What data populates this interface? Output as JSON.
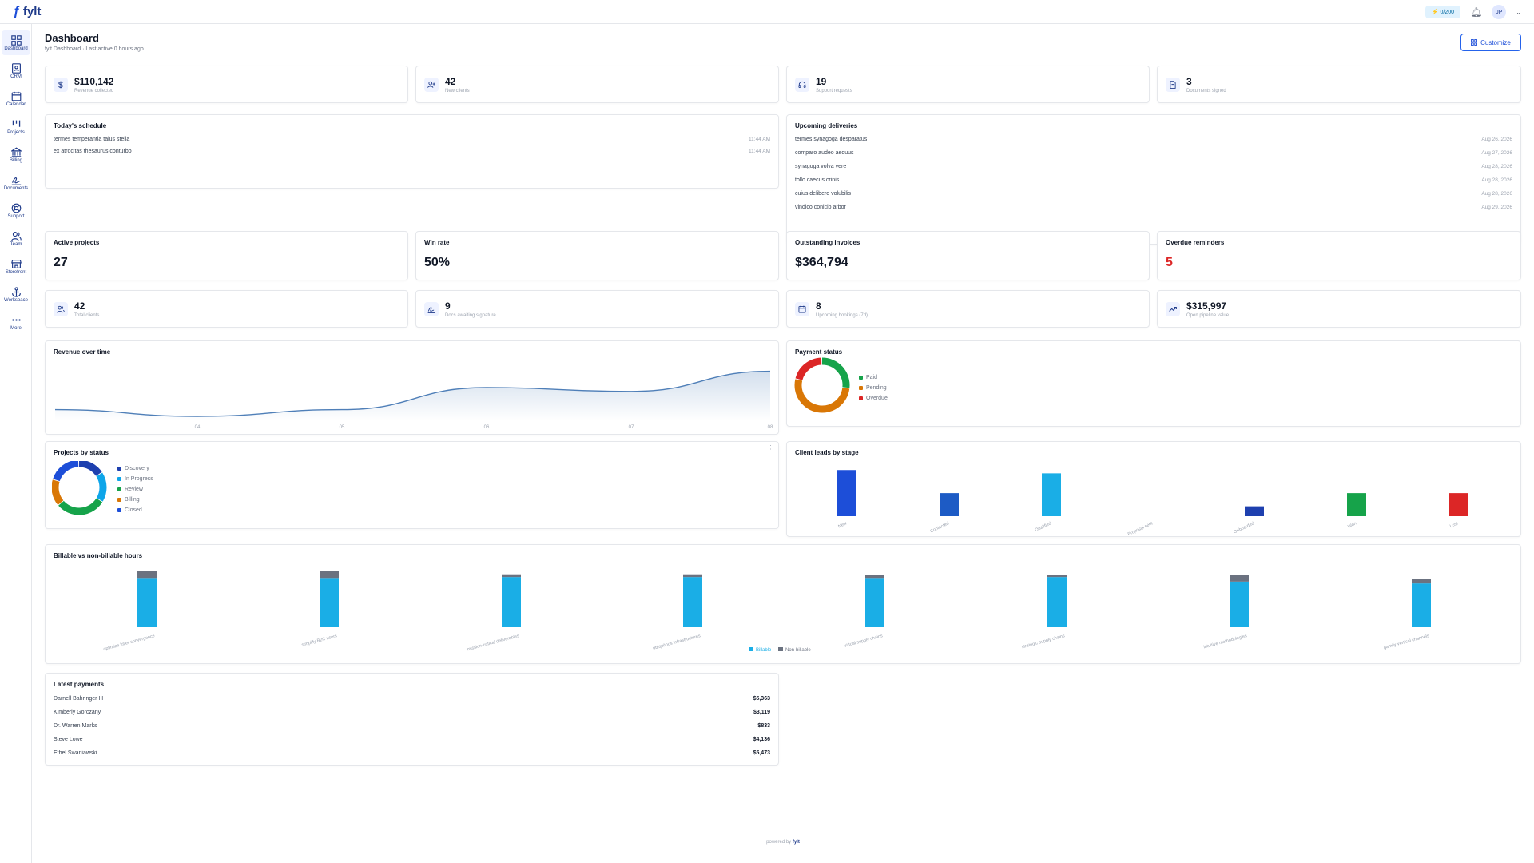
{
  "app": {
    "brand": "fylt",
    "credits": "0/200",
    "avatar": "JP"
  },
  "nav": [
    {
      "label": "Dashboard",
      "icon": "grid-icon",
      "active": true
    },
    {
      "label": "CRM",
      "icon": "contacts-icon"
    },
    {
      "label": "Calendar",
      "icon": "calendar-icon"
    },
    {
      "label": "Projects",
      "icon": "projects-icon"
    },
    {
      "label": "Billing",
      "icon": "bank-icon"
    },
    {
      "label": "Documents",
      "icon": "signature-icon"
    },
    {
      "label": "Support",
      "icon": "lifebuoy-icon"
    },
    {
      "label": "Team",
      "icon": "team-icon"
    },
    {
      "label": "Storefront",
      "icon": "store-icon"
    },
    {
      "label": "Workspace",
      "icon": "anchor-icon"
    },
    {
      "label": "More",
      "icon": "more-icon"
    }
  ],
  "page": {
    "title": "Dashboard",
    "subtitle": "fylt Dashboard · Last active 0 hours ago",
    "customize": "Customize"
  },
  "top_stats": [
    {
      "value": "$110,142",
      "label": "Revenue collected",
      "icon": "dollar-icon"
    },
    {
      "value": "42",
      "label": "New clients",
      "icon": "user-plus-icon"
    },
    {
      "value": "19",
      "label": "Support requests",
      "icon": "headset-icon"
    },
    {
      "value": "3",
      "label": "Documents signed",
      "icon": "document-icon"
    }
  ],
  "schedule": {
    "title": "Today's schedule",
    "items": [
      {
        "name": "termes temperantia talus stella",
        "time": "11:44 AM"
      },
      {
        "name": "ex atrocitas thesaurus conturbo",
        "time": "11:44 AM"
      }
    ]
  },
  "deliveries": {
    "title": "Upcoming deliveries",
    "items": [
      {
        "name": "termes synagoga desparatus",
        "date": "Aug 26, 2026"
      },
      {
        "name": "comparo audeo aequus",
        "date": "Aug 27, 2026"
      },
      {
        "name": "synagoga volva vere",
        "date": "Aug 28, 2026"
      },
      {
        "name": "tollo caecus crinis",
        "date": "Aug 28, 2026"
      },
      {
        "name": "cuius delibero volubilis",
        "date": "Aug 28, 2026"
      },
      {
        "name": "vindico conicio arbor",
        "date": "Aug 29, 2026"
      }
    ]
  },
  "kpis": [
    {
      "title": "Active projects",
      "value": "27"
    },
    {
      "title": "Win rate",
      "value": "50%"
    },
    {
      "title": "Outstanding invoices",
      "value": "$364,794"
    },
    {
      "title": "Overdue reminders",
      "value": "5",
      "color": "#dc2626"
    }
  ],
  "mid_stats": [
    {
      "value": "42",
      "label": "Total clients",
      "icon": "users-icon"
    },
    {
      "value": "9",
      "label": "Docs awaiting signature",
      "icon": "signature-icon"
    },
    {
      "value": "8",
      "label": "Upcoming bookings (7d)",
      "icon": "calendar-icon"
    },
    {
      "value": "$315,997",
      "label": "Open pipeline value",
      "icon": "trend-icon"
    }
  ],
  "chart_data": [
    {
      "id": "revenue",
      "type": "area",
      "title": "Revenue over time",
      "x": [
        "04",
        "05",
        "06",
        "07",
        "08"
      ],
      "y": [
        22,
        30,
        53,
        51,
        74
      ],
      "ylim": [
        0,
        100
      ],
      "color": "#4f7fb8"
    },
    {
      "id": "payment",
      "type": "pie",
      "title": "Payment status",
      "categories": [
        "Paid",
        "Pending",
        "Overdue"
      ],
      "values": [
        27,
        52,
        21
      ],
      "colors": [
        "#16a34a",
        "#d97706",
        "#dc2626"
      ]
    },
    {
      "id": "projects",
      "type": "pie",
      "title": "Projects by status",
      "categories": [
        "Discovery",
        "In Progress",
        "Review",
        "Billing",
        "Closed"
      ],
      "values": [
        16,
        18,
        30,
        16,
        20
      ],
      "colors": [
        "#1e40af",
        "#0ea5e9",
        "#16a34a",
        "#d97706",
        "#1d4ed8"
      ]
    },
    {
      "id": "leads",
      "type": "bar",
      "title": "Client leads by stage",
      "categories": [
        "New",
        "Contacted",
        "Qualified",
        "Proposal sent",
        "Onboarded",
        "Won",
        "Lost"
      ],
      "values": [
        7,
        3.5,
        6.5,
        0,
        1.5,
        3.5,
        3.5
      ],
      "ylim": [
        0,
        8
      ],
      "colors": [
        "#1d4ed8",
        "#1d5bc5",
        "#1aaee6",
        "#1d4ed8",
        "#1e40af",
        "#16a34a",
        "#dc2626"
      ]
    },
    {
      "id": "hours",
      "type": "bar",
      "title": "Billable vs non-billable hours",
      "categories": [
        "optimize killer convergence",
        "simplify B2C users",
        "mission-critical deliverables",
        "ubiquitous infrastructures",
        "virtual supply chains",
        "strategic supply chains",
        "intuitive methodologies",
        "gamify vertical channels"
      ],
      "series": [
        {
          "name": "Billable",
          "values": [
            54,
            54,
            55,
            55,
            54,
            55,
            50,
            48
          ],
          "color": "#1aaee6"
        },
        {
          "name": "Non-billable",
          "values": [
            8,
            8,
            3,
            3,
            3,
            2,
            7,
            5
          ],
          "color": "#6b7280"
        }
      ],
      "ylim": [
        0,
        70
      ]
    }
  ],
  "payments": {
    "title": "Latest payments",
    "items": [
      {
        "name": "Darnell Bahringer III",
        "amount": "$5,363"
      },
      {
        "name": "Kimberly Gorczany",
        "amount": "$3,119"
      },
      {
        "name": "Dr. Warren Marks",
        "amount": "$833"
      },
      {
        "name": "Steve Lowe",
        "amount": "$4,136"
      },
      {
        "name": "Ethel Swaniawski",
        "amount": "$5,473"
      }
    ]
  },
  "footer": {
    "prefix": "powered by",
    "brand": "fylt"
  }
}
